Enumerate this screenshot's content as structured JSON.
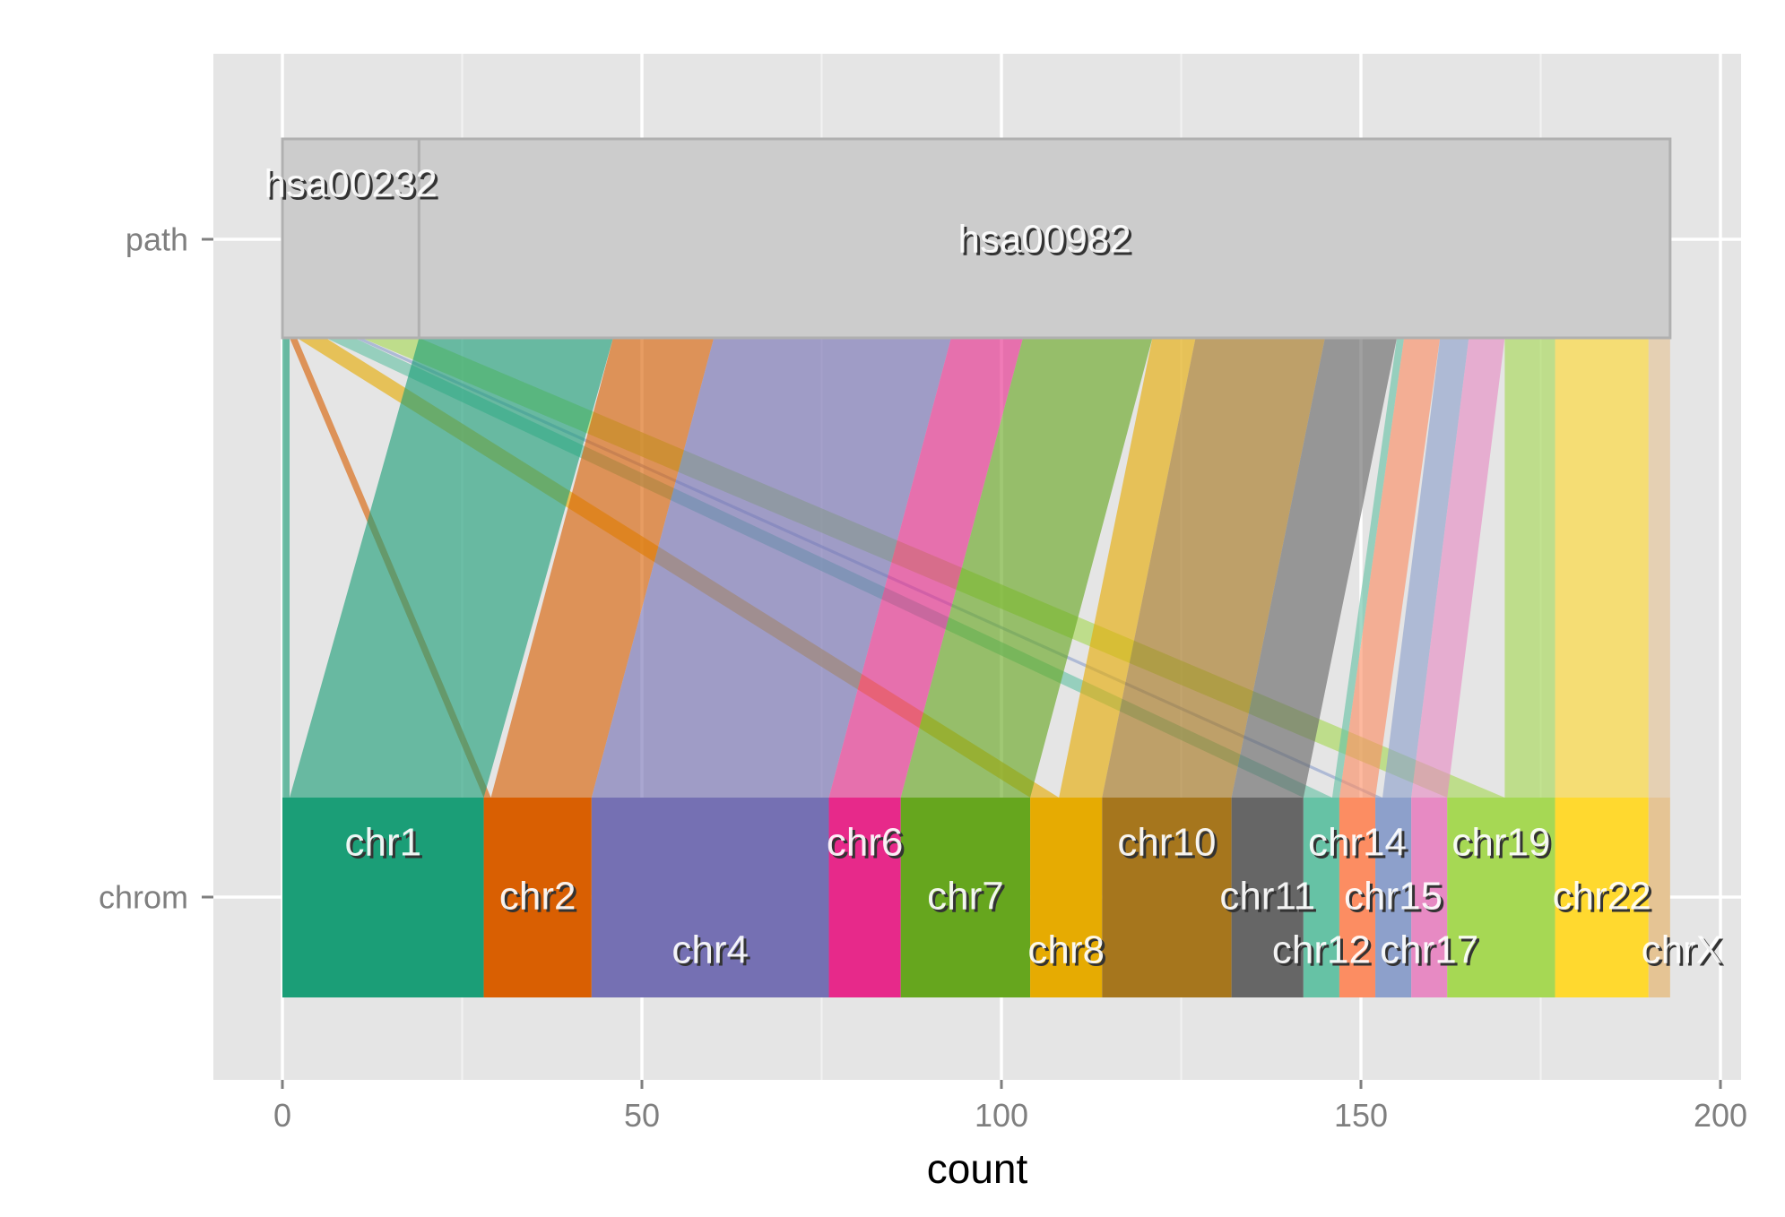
{
  "chart_data": {
    "type": "alluvial",
    "xlabel": "count",
    "xlim": [
      -10,
      203
    ],
    "xticks": [
      0,
      50,
      100,
      150,
      200
    ],
    "axes": [
      "path",
      "chrom"
    ],
    "grid": true,
    "path_nodes": [
      {
        "name": "hsa00232",
        "count": 19
      },
      {
        "name": "hsa00982",
        "count": 174
      }
    ],
    "chrom_nodes": [
      {
        "name": "chr1",
        "count": 28,
        "color": "#1b9e77"
      },
      {
        "name": "chr2",
        "count": 15,
        "color": "#d95f02"
      },
      {
        "name": "chr4",
        "count": 33,
        "color": "#7570b3"
      },
      {
        "name": "chr6",
        "count": 10,
        "color": "#e7298a"
      },
      {
        "name": "chr7",
        "count": 18,
        "color": "#66a61e"
      },
      {
        "name": "chr8",
        "count": 10,
        "color": "#e6ab02"
      },
      {
        "name": "chr10",
        "count": 18,
        "color": "#a6761d"
      },
      {
        "name": "chr11",
        "count": 10,
        "color": "#666666"
      },
      {
        "name": "chr12",
        "count": 5,
        "color": "#66c2a5"
      },
      {
        "name": "chr14",
        "count": 5,
        "color": "#fc8d62"
      },
      {
        "name": "chr15",
        "count": 5,
        "color": "#8da0cb"
      },
      {
        "name": "chr17",
        "count": 5,
        "color": "#e78ac3"
      },
      {
        "name": "chr19",
        "count": 15,
        "color": "#a6d854"
      },
      {
        "name": "chr22",
        "count": 13,
        "color": "#ffd92f"
      },
      {
        "name": "chrX",
        "count": 3,
        "color": "#e5c494"
      }
    ],
    "flows": [
      {
        "path": "hsa00232",
        "chrom": "chr1",
        "count": 1
      },
      {
        "path": "hsa00232",
        "chrom": "chr2",
        "count": 1
      },
      {
        "path": "hsa00232",
        "chrom": "chr8",
        "count": 4
      },
      {
        "path": "hsa00232",
        "chrom": "chr12",
        "count": 4
      },
      {
        "path": "hsa00232",
        "chrom": "chr15",
        "count": 1
      },
      {
        "path": "hsa00232",
        "chrom": "chr19",
        "count": 8
      },
      {
        "path": "hsa00982",
        "chrom": "chr1",
        "count": 27
      },
      {
        "path": "hsa00982",
        "chrom": "chr2",
        "count": 14
      },
      {
        "path": "hsa00982",
        "chrom": "chr4",
        "count": 33
      },
      {
        "path": "hsa00982",
        "chrom": "chr6",
        "count": 10
      },
      {
        "path": "hsa00982",
        "chrom": "chr7",
        "count": 18
      },
      {
        "path": "hsa00982",
        "chrom": "chr8",
        "count": 6
      },
      {
        "path": "hsa00982",
        "chrom": "chr10",
        "count": 18
      },
      {
        "path": "hsa00982",
        "chrom": "chr11",
        "count": 10
      },
      {
        "path": "hsa00982",
        "chrom": "chr12",
        "count": 1
      },
      {
        "path": "hsa00982",
        "chrom": "chr14",
        "count": 5
      },
      {
        "path": "hsa00982",
        "chrom": "chr15",
        "count": 4
      },
      {
        "path": "hsa00982",
        "chrom": "chr17",
        "count": 5
      },
      {
        "path": "hsa00982",
        "chrom": "chr19",
        "count": 7
      },
      {
        "path": "hsa00982",
        "chrom": "chr22",
        "count": 13
      },
      {
        "path": "hsa00982",
        "chrom": "chrX",
        "count": 3
      }
    ]
  }
}
